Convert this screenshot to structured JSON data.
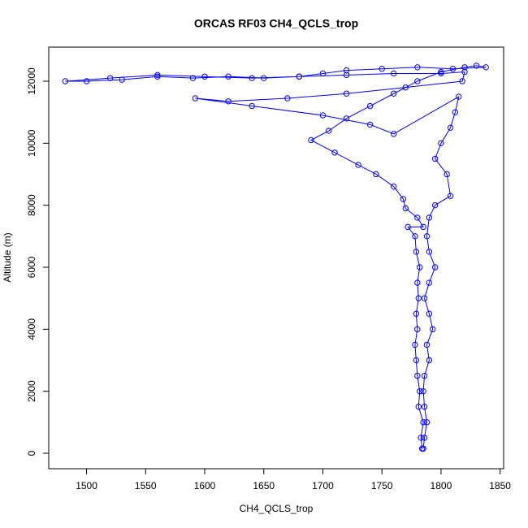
{
  "chart_data": {
    "type": "scatter",
    "mode": "lines+markers",
    "title": "ORCAS RF03 CH4_QCLS_trop",
    "xlabel": "CH4_QCLS_trop",
    "ylabel": "Altitude (m)",
    "color": "#0000ff",
    "xlim": [
      1468,
      1853
    ],
    "ylim": [
      -498,
      13100
    ],
    "xticks": [
      1500,
      1550,
      1600,
      1650,
      1700,
      1750,
      1800,
      1850
    ],
    "yticks": [
      0,
      2000,
      4000,
      6000,
      8000,
      10000,
      12000
    ],
    "x": [
      1784,
      1783,
      1785,
      1781,
      1782,
      1780,
      1779,
      1778,
      1780,
      1779,
      1781,
      1780,
      1782,
      1779,
      1778,
      1772,
      1785,
      1780,
      1770,
      1768,
      1760,
      1745,
      1730,
      1710,
      1690,
      1705,
      1720,
      1740,
      1760,
      1780,
      1800,
      1820,
      1830,
      1838,
      1810,
      1780,
      1750,
      1720,
      1700,
      1680,
      1650,
      1620,
      1590,
      1560,
      1530,
      1500,
      1482,
      1520,
      1560,
      1600,
      1640,
      1680,
      1720,
      1760,
      1800,
      1820,
      1818,
      1770,
      1720,
      1670,
      1620,
      1592,
      1640,
      1700,
      1740,
      1760,
      1815,
      1812,
      1808,
      1800,
      1795,
      1805,
      1808,
      1795,
      1790,
      1788,
      1790,
      1795,
      1790,
      1786,
      1790,
      1793,
      1788,
      1790,
      1786,
      1785,
      1786,
      1788,
      1786,
      1785
    ],
    "values": [
      150,
      500,
      1000,
      1500,
      2000,
      2500,
      3000,
      3500,
      4000,
      4500,
      5000,
      5500,
      6000,
      6500,
      7000,
      7300,
      7300,
      7600,
      7900,
      8200,
      8600,
      9000,
      9300,
      9700,
      10100,
      10400,
      10800,
      11200,
      11600,
      12000,
      12300,
      12450,
      12500,
      12450,
      12400,
      12450,
      12400,
      12350,
      12250,
      12150,
      12100,
      12150,
      12100,
      12150,
      12050,
      12000,
      12000,
      12100,
      12200,
      12150,
      12100,
      12150,
      12200,
      12250,
      12250,
      12300,
      12000,
      11800,
      11600,
      11450,
      11350,
      11450,
      11200,
      10900,
      10600,
      10300,
      11500,
      11000,
      10500,
      10000,
      9500,
      9000,
      8300,
      8000,
      7600,
      7000,
      6500,
      6000,
      5500,
      5000,
      4500,
      4000,
      3500,
      3000,
      2500,
      2000,
      1500,
      1000,
      500,
      150
    ]
  }
}
